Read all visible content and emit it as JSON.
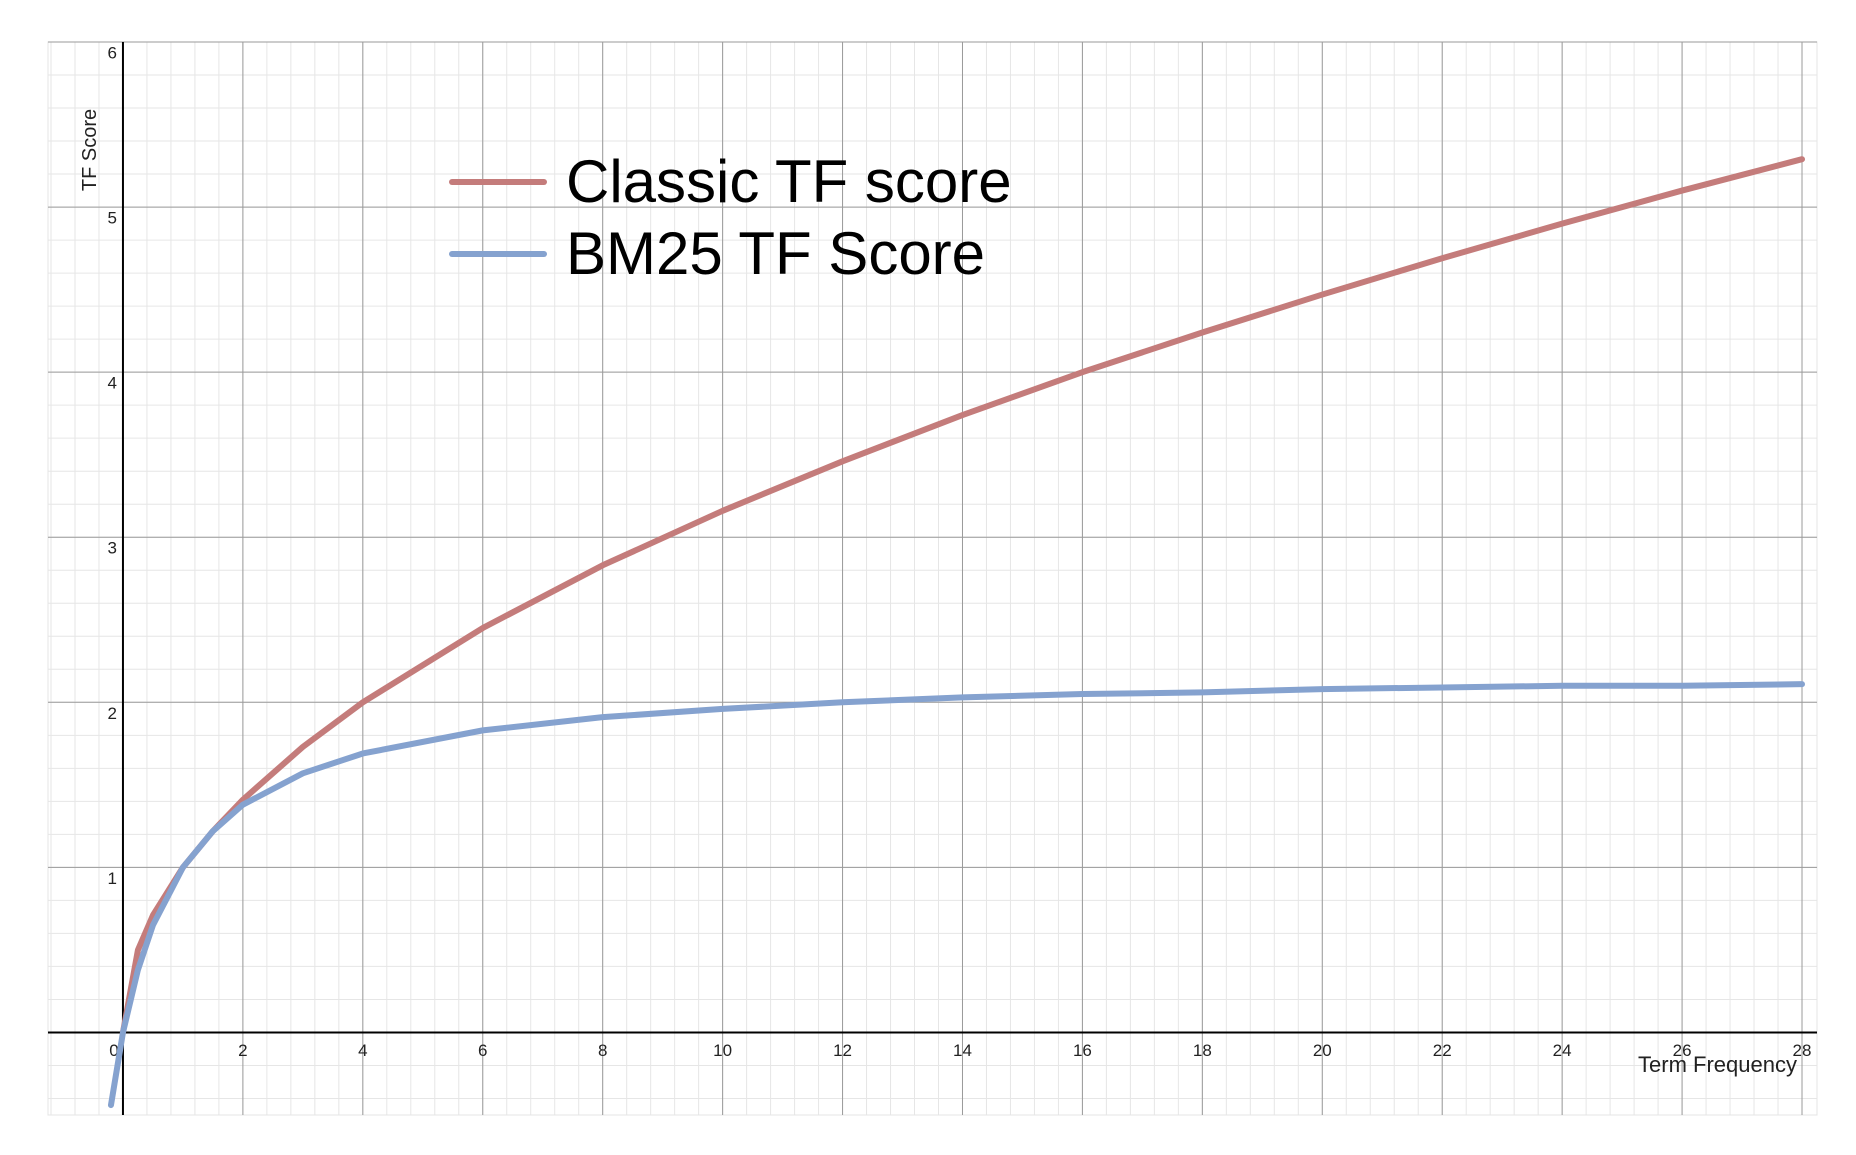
{
  "chart_data": {
    "type": "line",
    "x_label": "Term Frequency",
    "y_label": "TF Score",
    "x": [
      -0.2,
      0,
      0.25,
      0.5,
      1,
      1.5,
      2,
      3,
      4,
      6,
      8,
      10,
      12,
      14,
      16,
      18,
      20,
      22,
      24,
      26,
      28
    ],
    "series": [
      {
        "name": "Classic TF score",
        "color": "#c47c7b",
        "values": [
          null,
          0,
          0.5,
          0.71,
          1,
          1.22,
          1.41,
          1.73,
          2,
          2.45,
          2.83,
          3.16,
          3.46,
          3.74,
          4,
          4.24,
          4.47,
          4.69,
          4.9,
          5.1,
          5.29
        ]
      },
      {
        "name": "BM25 TF Score",
        "color": "#85a2cf",
        "values": [
          -0.44,
          0,
          0.38,
          0.65,
          1,
          1.22,
          1.38,
          1.57,
          1.69,
          1.83,
          1.91,
          1.96,
          2,
          2.03,
          2.05,
          2.06,
          2.08,
          2.09,
          2.1,
          2.1,
          2.11
        ]
      }
    ],
    "xlim": [
      -1.25,
      28.25
    ],
    "ylim": [
      -0.5,
      6
    ],
    "xticks": [
      0,
      2,
      4,
      6,
      8,
      10,
      12,
      14,
      16,
      18,
      20,
      22,
      24,
      26,
      28
    ],
    "yticks": [
      0,
      1,
      2,
      3,
      4,
      5,
      6
    ],
    "grid": true,
    "legend": "upper left"
  }
}
